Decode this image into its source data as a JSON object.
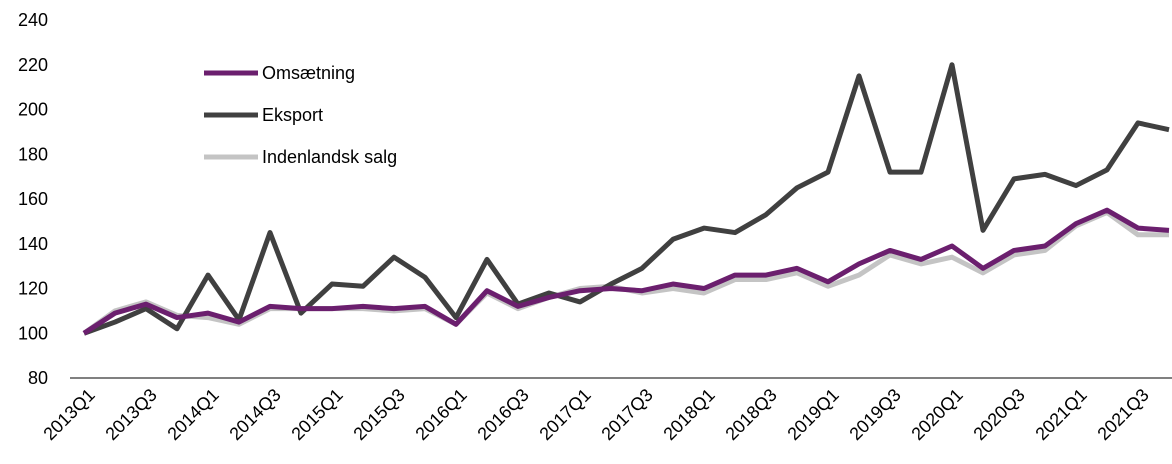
{
  "chart_data": {
    "type": "line",
    "categories": [
      "2013Q1",
      null,
      "2013Q3",
      null,
      "2014Q1",
      null,
      "2014Q3",
      null,
      "2015Q1",
      null,
      "2015Q3",
      null,
      "2016Q1",
      null,
      "2016Q3",
      null,
      "2017Q1",
      null,
      "2017Q3",
      null,
      "2018Q1",
      null,
      "2018Q3",
      null,
      "2019Q1",
      null,
      "2019Q3",
      null,
      "2020Q1",
      null,
      "2020Q3",
      null,
      "2021Q1",
      null,
      "2021Q3",
      null
    ],
    "series": [
      {
        "name": "Omsætning",
        "color": "#6b1f6e",
        "values": [
          100,
          109,
          113,
          107,
          109,
          105,
          112,
          111,
          111,
          112,
          111,
          112,
          104,
          119,
          112,
          116,
          119,
          120,
          119,
          122,
          120,
          126,
          126,
          129,
          123,
          131,
          137,
          133,
          139,
          129,
          137,
          139,
          149,
          155,
          147,
          146
        ]
      },
      {
        "name": "Eksport",
        "color": "#404040",
        "values": [
          100,
          105,
          111,
          102,
          126,
          106,
          145,
          109,
          122,
          121,
          134,
          125,
          107,
          133,
          113,
          118,
          114,
          122,
          129,
          142,
          147,
          145,
          153,
          165,
          172,
          215,
          172,
          172,
          220,
          146,
          169,
          171,
          166,
          173,
          194,
          191
        ]
      },
      {
        "name": "Indenlandsk salg",
        "color": "#c4c4c4",
        "values": [
          100,
          110,
          114,
          108,
          107,
          104,
          111,
          111,
          111,
          111,
          110,
          111,
          104,
          118,
          111,
          116,
          120,
          121,
          118,
          120,
          118,
          124,
          124,
          127,
          121,
          126,
          135,
          131,
          134,
          127,
          135,
          137,
          148,
          154,
          144,
          144
        ]
      }
    ],
    "ylim": [
      80,
      240
    ],
    "yticks": [
      80,
      100,
      120,
      140,
      160,
      180,
      200,
      220,
      240
    ],
    "grid": false,
    "legend": "upper left"
  }
}
